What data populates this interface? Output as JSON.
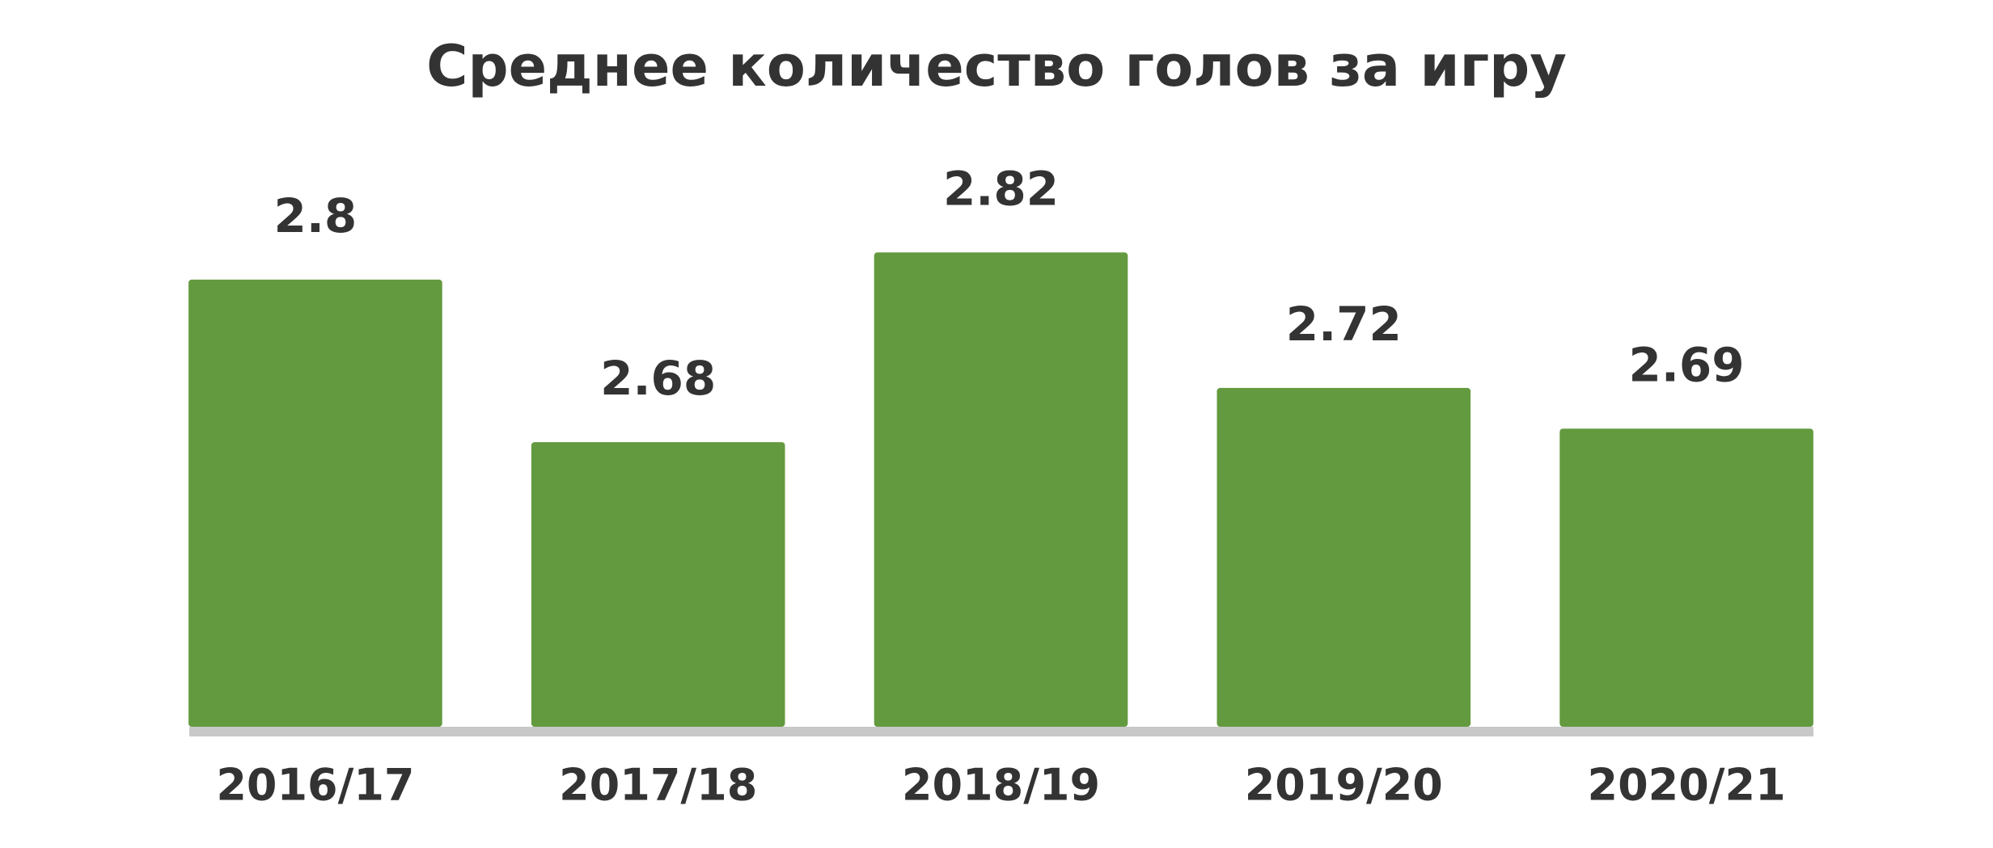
{
  "chart_data": {
    "type": "bar",
    "title": "Среднее количество голов за игру",
    "categories": [
      "2016/17",
      "2017/18",
      "2018/19",
      "2019/20",
      "2020/21"
    ],
    "values": [
      2.8,
      2.68,
      2.82,
      2.72,
      2.69
    ],
    "color": "#639a3f",
    "ylim": [
      2.47,
      2.85
    ]
  }
}
